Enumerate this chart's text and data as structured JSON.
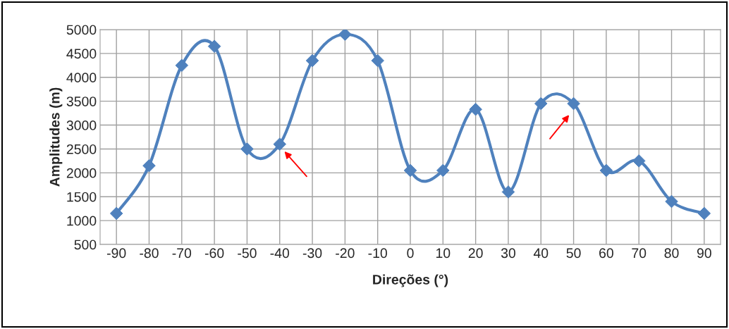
{
  "chart_data": {
    "type": "line",
    "xlabel": "Direções (°)",
    "ylabel": "Amplitudes (m)",
    "categories": [
      "-90",
      "-80",
      "-70",
      "-60",
      "-50",
      "-40",
      "-30",
      "-20",
      "-10",
      "0",
      "10",
      "20",
      "30",
      "40",
      "50",
      "60",
      "70",
      "80",
      "90"
    ],
    "series": [
      {
        "color": "#4f81bd",
        "values": [
          1150,
          2150,
          4250,
          4650,
          2500,
          2600,
          4350,
          4900,
          4350,
          2050,
          2050,
          3330,
          1600,
          3450,
          3450,
          2050,
          2250,
          1400,
          1150
        ]
      }
    ],
    "ylim": [
      500,
      5000
    ],
    "yticks": [
      500,
      1000,
      1500,
      2000,
      2500,
      3000,
      3500,
      4000,
      4500,
      5000
    ],
    "grid": true,
    "marker": "diamond",
    "line_style": "solid"
  }
}
